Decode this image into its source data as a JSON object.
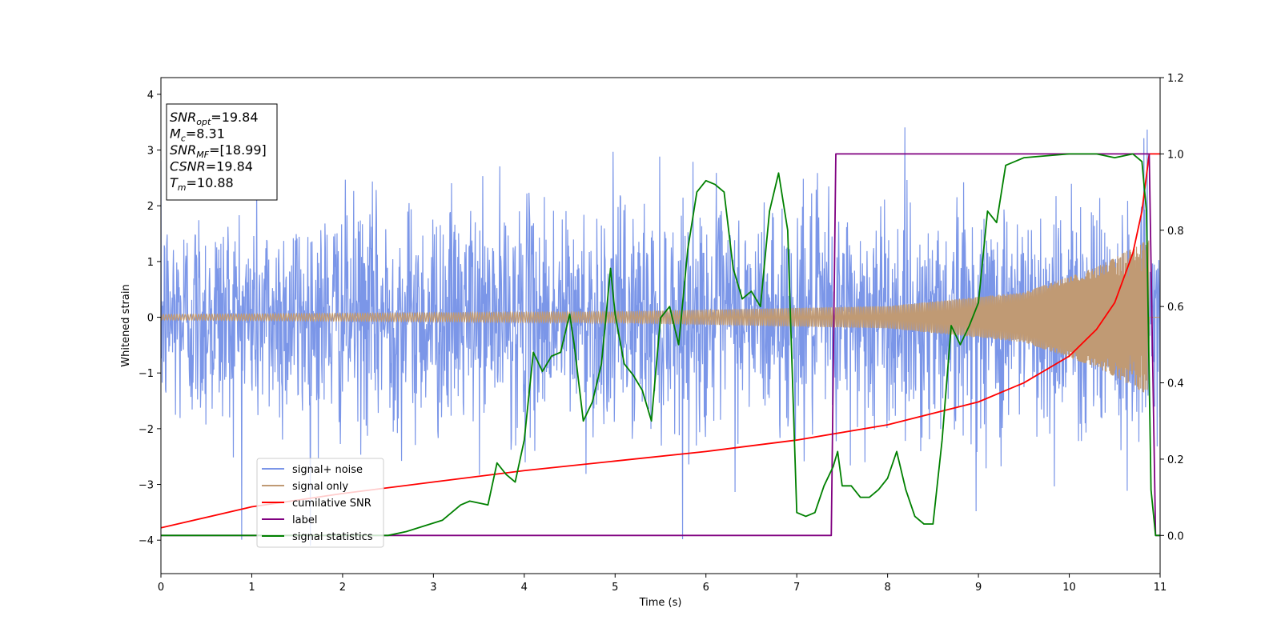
{
  "chart_data": {
    "type": "line",
    "xlabel": "Time (s)",
    "ylabel": "Whitened strain",
    "xlim": [
      0,
      11
    ],
    "ylim": [
      -4.6,
      4.3
    ],
    "y2lim": [
      -0.1,
      1.2
    ],
    "x_ticks": [
      "0",
      "1",
      "2",
      "3",
      "4",
      "5",
      "6",
      "7",
      "8",
      "9",
      "10",
      "11"
    ],
    "y_ticks": [
      "4",
      "3",
      "2",
      "1",
      "0",
      "−1",
      "−2",
      "−3",
      "−4"
    ],
    "y2_ticks": [
      "1.2",
      "1.0",
      "0.8",
      "0.6",
      "0.4",
      "0.2",
      "0.0"
    ],
    "grid": false,
    "legend_position": "lower-left",
    "annotation": {
      "lines": [
        {
          "sym": "SNR",
          "sub": "opt",
          "val": "=19.84"
        },
        {
          "sym": "M",
          "sub": "c",
          "val": "=8.31"
        },
        {
          "sym": "SNR",
          "sub": "MF",
          "val": "=[18.99]"
        },
        {
          "sym": "CSNR",
          "sub": "",
          "val": "=19.84"
        },
        {
          "sym": "T",
          "sub": "m",
          "val": "=10.88"
        }
      ]
    },
    "series": [
      {
        "name": "signal+ noise",
        "color": "#7b96e8",
        "axis": "left",
        "kind": "gaussian-noise-plus-chirp",
        "noise_sd": 1.0,
        "typical_range": [
          -4.1,
          3.9
        ]
      },
      {
        "name": "signal only",
        "color": "#c09a74",
        "axis": "left",
        "kind": "chirp",
        "amplitude_envelope": [
          [
            0,
            0.05
          ],
          [
            5,
            0.1
          ],
          [
            8,
            0.2
          ],
          [
            9.5,
            0.45
          ],
          [
            10.3,
            0.9
          ],
          [
            10.88,
            1.4
          ]
        ],
        "merger_time": 10.88
      },
      {
        "name": "cumilative SNR",
        "color": "#ff0000",
        "axis": "right",
        "x": [
          0,
          1,
          2,
          3,
          4,
          5,
          6,
          7,
          8,
          9,
          9.5,
          10,
          10.3,
          10.5,
          10.7,
          10.8,
          10.88,
          11
        ],
        "y": [
          0.02,
          0.075,
          0.11,
          0.14,
          0.17,
          0.195,
          0.22,
          0.25,
          0.29,
          0.35,
          0.4,
          0.47,
          0.54,
          0.61,
          0.74,
          0.85,
          1.0,
          1.0
        ]
      },
      {
        "name": "label",
        "color": "#800080",
        "axis": "right",
        "x": [
          0,
          7.38,
          7.43,
          10.86,
          10.88,
          10.95,
          11
        ],
        "y": [
          0.0,
          0.0,
          1.0,
          1.0,
          1.0,
          0.0,
          0.0
        ]
      },
      {
        "name": "signal statistics",
        "color": "#008000",
        "axis": "right",
        "x": [
          0,
          0.5,
          1,
          1.5,
          2,
          2.5,
          2.7,
          2.9,
          3.1,
          3.3,
          3.4,
          3.6,
          3.7,
          3.8,
          3.9,
          4.0,
          4.1,
          4.2,
          4.3,
          4.4,
          4.5,
          4.55,
          4.65,
          4.75,
          4.85,
          4.95,
          5.0,
          5.1,
          5.2,
          5.3,
          5.4,
          5.5,
          5.6,
          5.7,
          5.8,
          5.9,
          6.0,
          6.1,
          6.2,
          6.3,
          6.4,
          6.5,
          6.6,
          6.7,
          6.8,
          6.9,
          7.0,
          7.1,
          7.2,
          7.3,
          7.4,
          7.45,
          7.5,
          7.6,
          7.7,
          7.8,
          7.9,
          8.0,
          8.1,
          8.2,
          8.3,
          8.4,
          8.5,
          8.6,
          8.7,
          8.8,
          8.9,
          9.0,
          9.1,
          9.2,
          9.3,
          9.5,
          10.0,
          10.3,
          10.5,
          10.7,
          10.8,
          10.85,
          10.9,
          10.95,
          11
        ],
        "y": [
          0.0,
          0.0,
          0.0,
          0.0,
          0.0,
          0.0,
          0.01,
          0.025,
          0.04,
          0.08,
          0.09,
          0.08,
          0.19,
          0.16,
          0.14,
          0.25,
          0.48,
          0.43,
          0.47,
          0.48,
          0.58,
          0.5,
          0.3,
          0.35,
          0.45,
          0.7,
          0.58,
          0.45,
          0.42,
          0.38,
          0.3,
          0.57,
          0.6,
          0.5,
          0.75,
          0.9,
          0.93,
          0.92,
          0.9,
          0.7,
          0.62,
          0.64,
          0.6,
          0.85,
          0.95,
          0.8,
          0.06,
          0.05,
          0.06,
          0.13,
          0.18,
          0.22,
          0.13,
          0.13,
          0.1,
          0.1,
          0.12,
          0.15,
          0.22,
          0.12,
          0.05,
          0.03,
          0.03,
          0.25,
          0.55,
          0.5,
          0.55,
          0.61,
          0.85,
          0.82,
          0.97,
          0.99,
          1.0,
          1.0,
          0.99,
          1.0,
          0.98,
          0.85,
          0.12,
          0.0,
          0.0
        ]
      }
    ]
  }
}
